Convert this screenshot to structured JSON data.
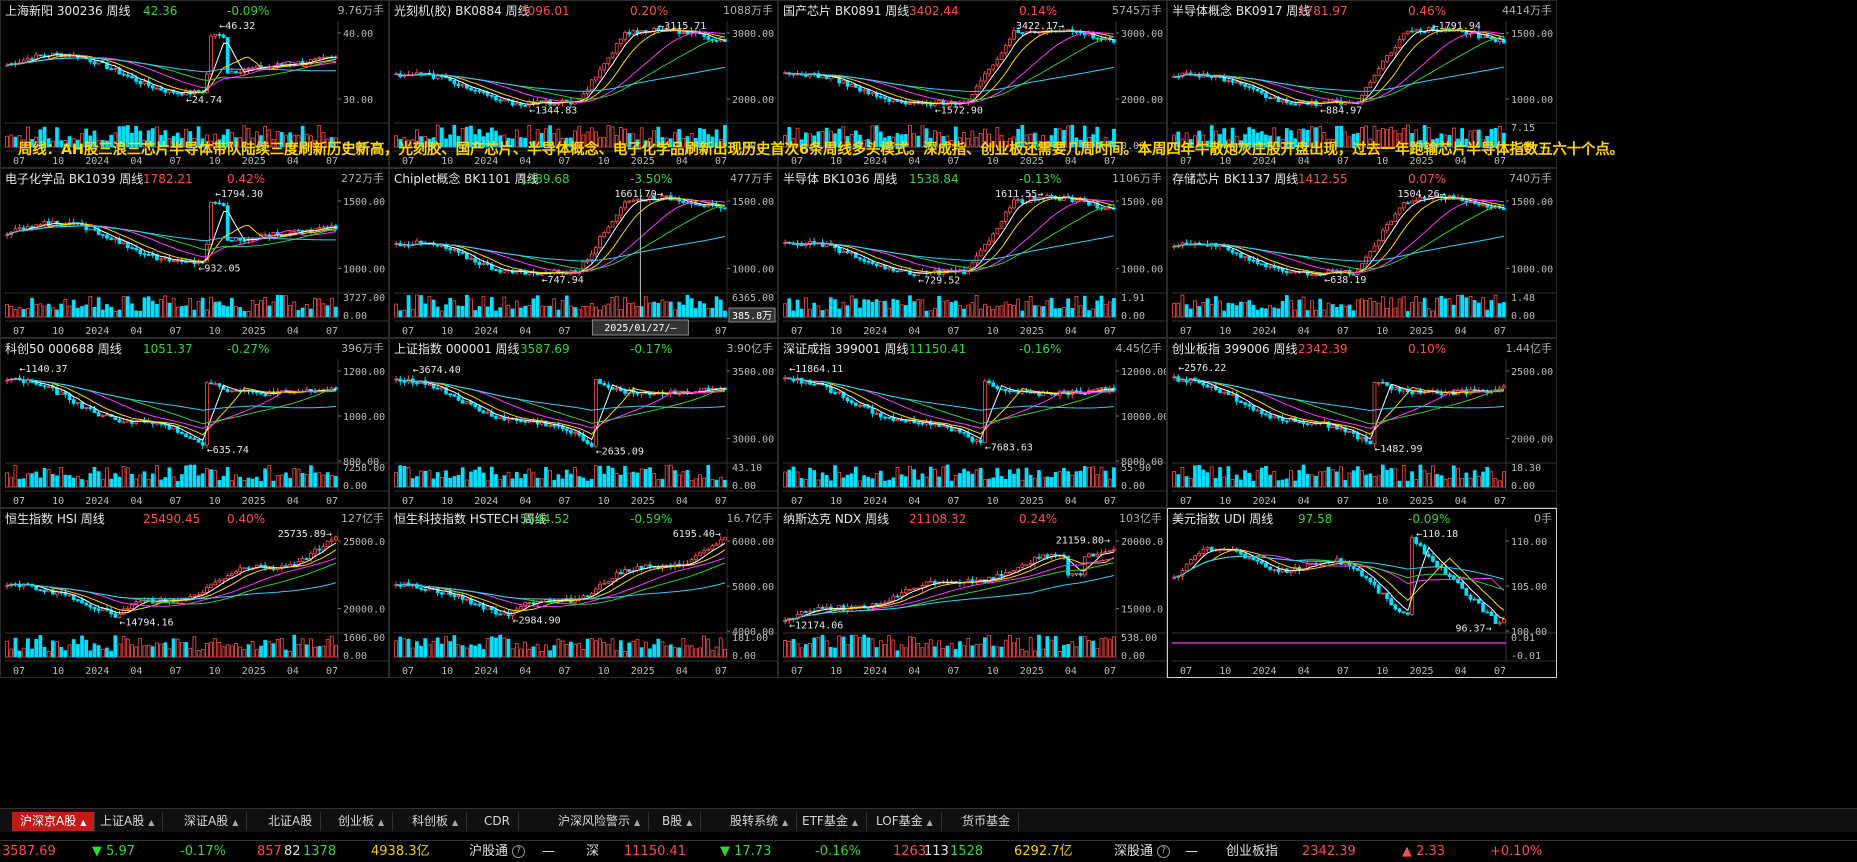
{
  "banner": "周线：AH股三浪三芯片半导体带队陆续三度刷新历史新高，光刻胶、国产芯片、半导体概念、电子化学品刷新出现历史首次6条周线多头模式。深成指、创业板还需要几周时间。本周四年牛散炮灰庄股开盘出现，过去一年跑输芯片半导体指数五六十个点。",
  "x_labels": [
    "07",
    "10",
    "2024",
    "04",
    "07",
    "10",
    "2025",
    "04",
    "07"
  ],
  "cursor_date": "2025/01/27/—",
  "cursor_value": "385.8万",
  "colors": {
    "up": "#ff4d4d",
    "down": "#33d633",
    "ma5": "#ffffff",
    "ma10": "#ffd400",
    "ma20": "#ff33ff",
    "ma30": "#33cc33",
    "ma60": "#33ccff"
  },
  "panels": [
    {
      "name": "上海新阳 300236 周线",
      "price": "42.36",
      "change": "-0.09%",
      "dir": "dn",
      "vol": "9.76万手",
      "hi": "46.32",
      "lo": "24.74",
      "yticks": [
        "40.00",
        "30.00"
      ],
      "vticks": [
        "",
        "0.00"
      ],
      "shape": "a"
    },
    {
      "name": "光刻机(胶) BK0884 周线",
      "price": "3096.01",
      "change": "0.20%",
      "dir": "up",
      "vol": "1088万手",
      "hi": "3115.71",
      "lo": "1344.83",
      "yticks": [
        "3000.00",
        "2000.00"
      ],
      "vticks": [
        "",
        "0.00"
      ],
      "shape": "b"
    },
    {
      "name": "国产芯片 BK0891 周线",
      "price": "3402.44",
      "change": "0.14%",
      "dir": "up",
      "vol": "5745万手",
      "hi": "3422.17",
      "lo": "1572.90",
      "yticks": [
        "3000.00",
        "2000.00"
      ],
      "vticks": [
        "",
        "0.00"
      ],
      "shape": "b"
    },
    {
      "name": "半导体概念 BK0917 周线",
      "price": "1781.97",
      "change": "0.46%",
      "dir": "up",
      "vol": "4414万手",
      "hi": "1791.94",
      "lo": "884.97",
      "yticks": [
        "1500.00",
        "1000.00"
      ],
      "vticks": [
        "7.15",
        "0.00"
      ],
      "shape": "b"
    },
    {
      "name": "电子化学品 BK1039 周线",
      "price": "1782.21",
      "change": "0.42%",
      "dir": "up",
      "vol": "272万手",
      "hi": "1794.30",
      "lo": "932.05",
      "yticks": [
        "1500.00",
        "1000.00"
      ],
      "vticks": [
        "3727.00",
        "0.00"
      ],
      "shape": "a"
    },
    {
      "name": "Chiplet概念 BK1101 周线",
      "price": "1389.68",
      "change": "-3.50%",
      "dir": "dn",
      "vol": "477万手",
      "hi": "1661.70",
      "lo": "747.94",
      "yticks": [
        "1500.00",
        "1000.00"
      ],
      "vticks": [
        "6365.00",
        "0.00"
      ],
      "shape": "b"
    },
    {
      "name": "半导体 BK1036 周线",
      "price": "1538.84",
      "change": "-0.13%",
      "dir": "dn",
      "vol": "1106万手",
      "hi": "1611.55",
      "lo": "729.52",
      "yticks": [
        "1500.00",
        "1000.00"
      ],
      "vticks": [
        "1.91",
        "0.00"
      ],
      "shape": "b"
    },
    {
      "name": "存储芯片 BK1137 周线",
      "price": "1412.55",
      "change": "0.07%",
      "dir": "up",
      "vol": "740万手",
      "hi": "1504.26",
      "lo": "638.19",
      "yticks": [
        "1500.00",
        "1000.00"
      ],
      "vticks": [
        "1.48",
        "0.00"
      ],
      "shape": "b"
    },
    {
      "name": "科创50 000688 周线",
      "price": "1051.37",
      "change": "-0.27%",
      "dir": "dn",
      "vol": "396万手",
      "hi": "1140.37",
      "lo": "635.74",
      "yticks": [
        "1200.00",
        "1000.00",
        "800.00"
      ],
      "vticks": [
        "7258.00",
        "0.00"
      ],
      "shape": "c"
    },
    {
      "name": "上证指数 000001 周线",
      "price": "3587.69",
      "change": "-0.17%",
      "dir": "dn",
      "vol": "3.90亿手",
      "hi": "3674.40",
      "lo": "2635.09",
      "yticks": [
        "3500.00",
        "3000.00"
      ],
      "vticks": [
        "43.10",
        "0.00"
      ],
      "shape": "c"
    },
    {
      "name": "深证成指 399001 周线",
      "price": "11150.41",
      "change": "-0.16%",
      "dir": "dn",
      "vol": "4.45亿手",
      "hi": "11864.11",
      "lo": "7683.63",
      "yticks": [
        "12000.00",
        "10000.00",
        "8000.00"
      ],
      "vticks": [
        "55.90",
        "0.00"
      ],
      "shape": "c"
    },
    {
      "name": "创业板指 399006 周线",
      "price": "2342.39",
      "change": "0.10%",
      "dir": "up",
      "vol": "1.44亿手",
      "hi": "2576.22",
      "lo": "1482.99",
      "yticks": [
        "2500.00",
        "2000.00"
      ],
      "vticks": [
        "18.30",
        "0.00"
      ],
      "shape": "c"
    },
    {
      "name": "恒生指数 HSI 周线",
      "price": "25490.45",
      "change": "0.40%",
      "dir": "up",
      "vol": "127亿手",
      "hi": "25735.89",
      "lo": "14794.16",
      "yticks": [
        "25000.0",
        "20000.0"
      ],
      "vticks": [
        "1606.00",
        "0.00"
      ],
      "shape": "d"
    },
    {
      "name": "恒生科技指数 HSTECH 周线",
      "price": "5644.52",
      "change": "-0.59%",
      "dir": "dn",
      "vol": "16.7亿手",
      "hi": "6195.40",
      "lo": "2984.90",
      "yticks": [
        "6000.00",
        "5000.00",
        "4000.00"
      ],
      "vticks": [
        "181.00",
        "0.00"
      ],
      "shape": "d"
    },
    {
      "name": "纳斯达克 NDX 周线",
      "price": "21108.32",
      "change": "0.24%",
      "dir": "up",
      "vol": "103亿手",
      "hi": "21159.80",
      "lo": "12174.06",
      "yticks": [
        "20000.0",
        "15000.0"
      ],
      "vticks": [
        "538.00",
        "0.00"
      ],
      "shape": "e"
    },
    {
      "name": "美元指数 UDI 周线",
      "price": "97.58",
      "change": "-0.09%",
      "dir": "dn",
      "vol": "0手",
      "hi": "110.18",
      "lo": "96.37",
      "yticks": [
        "110.00",
        "105.00",
        "100.00"
      ],
      "vticks": [
        "0.01",
        "-0.01"
      ],
      "shape": "f"
    }
  ],
  "tabs": [
    {
      "label": "沪深京A股",
      "caret": "▲",
      "active": true
    },
    {
      "label": "上证A股",
      "caret": "▲"
    },
    {
      "label": "深证A股",
      "caret": "▲"
    },
    {
      "label": "北证A股",
      "caret": ""
    },
    {
      "label": "创业板",
      "caret": "▲"
    },
    {
      "label": "科创板",
      "caret": "▲"
    },
    {
      "label": "CDR",
      "caret": ""
    },
    {
      "label": "沪深风险警示",
      "caret": "▲"
    },
    {
      "label": "B股",
      "caret": "▲"
    },
    {
      "label": "股转系统",
      "caret": "▲"
    },
    {
      "label": "ETF基金",
      "caret": "▲"
    },
    {
      "label": "LOF基金",
      "caret": "▲"
    },
    {
      "label": "货币基金",
      "caret": ""
    }
  ],
  "status": {
    "sh_index": "3587.69",
    "sh_change": "▼ 5.97",
    "sh_pct": "-0.17%",
    "sh_up": "857",
    "sh_flat": "82",
    "sh_down": "1378",
    "sh_amount": "4938.3亿",
    "hgt_label": "沪股通",
    "hgt_value": "—",
    "sz_label": "深",
    "sz_index": "11150.41",
    "sz_change": "▼ 17.73",
    "sz_pct": "-0.16%",
    "sz_up": "1263",
    "sz_flat": "113",
    "sz_down": "1528",
    "sz_amount": "6292.7亿",
    "sgt_label": "深股通",
    "sgt_value": "—",
    "cyb_label": "创业板指",
    "cyb_index": "2342.39",
    "cyb_change": "▲ 2.33",
    "cyb_pct": "+0.10%"
  }
}
